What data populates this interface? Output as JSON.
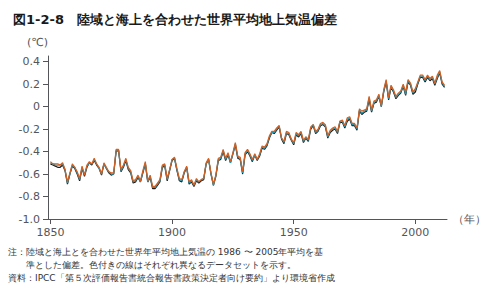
{
  "chart_data": {
    "type": "line",
    "title": "図1-2-8　陸域と海上を合わせた世界平均地上気温偏差",
    "ylabel": "(℃)",
    "xlabel": "（年）",
    "annotations": [
      "注：陸域と海上とを合わせた世界年平均地上気温の 1986 〜 2005年平均を基",
      "　　準とした偏差。色付きの線はそれぞれ異なるデータセットを示す。",
      "資料：IPCC「第５次評価報告書統合報告書政策決定者向け要約」より環境省作成"
    ],
    "grid": false,
    "xlim": [
      1849,
      2013
    ],
    "xticks": [
      1850,
      1900,
      1950,
      2000
    ],
    "ylim": [
      -1.0,
      0.45
    ],
    "yticks": [
      {
        "value": -1.0,
        "label": "-1.0"
      },
      -0.8,
      -0.6,
      -0.4,
      -0.2,
      0,
      0.2,
      0.4
    ],
    "x": [
      1850,
      1851,
      1852,
      1853,
      1854,
      1855,
      1856,
      1857,
      1858,
      1859,
      1860,
      1861,
      1862,
      1863,
      1864,
      1865,
      1866,
      1867,
      1868,
      1869,
      1870,
      1871,
      1872,
      1873,
      1874,
      1875,
      1876,
      1877,
      1878,
      1879,
      1880,
      1881,
      1882,
      1883,
      1884,
      1885,
      1886,
      1887,
      1888,
      1889,
      1890,
      1891,
      1892,
      1893,
      1894,
      1895,
      1896,
      1897,
      1898,
      1899,
      1900,
      1901,
      1902,
      1903,
      1904,
      1905,
      1906,
      1907,
      1908,
      1909,
      1910,
      1911,
      1912,
      1913,
      1914,
      1915,
      1916,
      1917,
      1918,
      1919,
      1920,
      1921,
      1922,
      1923,
      1924,
      1925,
      1926,
      1927,
      1928,
      1929,
      1930,
      1931,
      1932,
      1933,
      1934,
      1935,
      1936,
      1937,
      1938,
      1939,
      1940,
      1941,
      1942,
      1943,
      1944,
      1945,
      1946,
      1947,
      1948,
      1949,
      1950,
      1951,
      1952,
      1953,
      1954,
      1955,
      1956,
      1957,
      1958,
      1959,
      1960,
      1961,
      1962,
      1963,
      1964,
      1965,
      1966,
      1967,
      1968,
      1969,
      1970,
      1971,
      1972,
      1973,
      1974,
      1975,
      1976,
      1977,
      1978,
      1979,
      1980,
      1981,
      1982,
      1983,
      1984,
      1985,
      1986,
      1987,
      1988,
      1989,
      1990,
      1991,
      1992,
      1993,
      1994,
      1995,
      1996,
      1997,
      1998,
      1999,
      2000,
      2001,
      2002,
      2003,
      2004,
      2005,
      2006,
      2007,
      2008,
      2009,
      2010,
      2011,
      2012
    ],
    "series": [
      {
        "color": "#1a1a1a",
        "values": [
          -0.51,
          -0.52,
          -0.53,
          -0.54,
          -0.54,
          -0.52,
          -0.57,
          -0.69,
          -0.6,
          -0.53,
          -0.55,
          -0.6,
          -0.66,
          -0.55,
          -0.62,
          -0.54,
          -0.5,
          -0.52,
          -0.48,
          -0.52,
          -0.55,
          -0.61,
          -0.51,
          -0.55,
          -0.59,
          -0.61,
          -0.6,
          -0.4,
          -0.39,
          -0.58,
          -0.54,
          -0.48,
          -0.56,
          -0.59,
          -0.68,
          -0.67,
          -0.63,
          -0.67,
          -0.59,
          -0.51,
          -0.67,
          -0.63,
          -0.73,
          -0.73,
          -0.7,
          -0.67,
          -0.54,
          -0.53,
          -0.66,
          -0.57,
          -0.48,
          -0.46,
          -0.57,
          -0.66,
          -0.67,
          -0.59,
          -0.54,
          -0.69,
          -0.67,
          -0.71,
          -0.66,
          -0.68,
          -0.66,
          -0.65,
          -0.51,
          -0.47,
          -0.6,
          -0.7,
          -0.62,
          -0.48,
          -0.47,
          -0.4,
          -0.48,
          -0.43,
          -0.5,
          -0.42,
          -0.34,
          -0.46,
          -0.47,
          -0.6,
          -0.43,
          -0.4,
          -0.44,
          -0.49,
          -0.43,
          -0.48,
          -0.44,
          -0.37,
          -0.38,
          -0.35,
          -0.28,
          -0.23,
          -0.24,
          -0.21,
          -0.18,
          -0.29,
          -0.33,
          -0.24,
          -0.25,
          -0.3,
          -0.34,
          -0.25,
          -0.27,
          -0.24,
          -0.32,
          -0.28,
          -0.31,
          -0.2,
          -0.17,
          -0.24,
          -0.22,
          -0.17,
          -0.16,
          -0.18,
          -0.28,
          -0.23,
          -0.21,
          -0.2,
          -0.24,
          -0.14,
          -0.14,
          -0.19,
          -0.13,
          -0.11,
          -0.17,
          -0.17,
          -0.21,
          -0.04,
          -0.07,
          -0.05,
          -0.04,
          0.06,
          -0.05,
          0.03,
          0.04,
          0.09,
          -0.0,
          0.13,
          0.22,
          0.06,
          0.17,
          0.13,
          0.07,
          0.1,
          0.12,
          0.18,
          0.1,
          0.22,
          0.19,
          0.11,
          0.13,
          0.2,
          0.26,
          0.26,
          0.22,
          0.26,
          0.23,
          0.25,
          0.19,
          0.25,
          0.3,
          0.2,
          0.17
        ]
      },
      {
        "color": "#2196b0",
        "values": [
          -0.5,
          -0.51,
          -0.52,
          -0.52,
          -0.52,
          -0.51,
          -0.56,
          -0.68,
          -0.6,
          -0.52,
          -0.54,
          -0.59,
          -0.65,
          -0.54,
          -0.61,
          -0.53,
          -0.5,
          -0.51,
          -0.47,
          -0.51,
          -0.55,
          -0.6,
          -0.51,
          -0.55,
          -0.58,
          -0.6,
          -0.6,
          -0.39,
          -0.39,
          -0.57,
          -0.53,
          -0.47,
          -0.55,
          -0.58,
          -0.67,
          -0.66,
          -0.62,
          -0.67,
          -0.58,
          -0.5,
          -0.67,
          -0.62,
          -0.72,
          -0.72,
          -0.69,
          -0.66,
          -0.53,
          -0.52,
          -0.65,
          -0.56,
          -0.47,
          -0.46,
          -0.56,
          -0.65,
          -0.66,
          -0.58,
          -0.54,
          -0.68,
          -0.66,
          -0.7,
          -0.65,
          -0.67,
          -0.65,
          -0.64,
          -0.51,
          -0.47,
          -0.6,
          -0.7,
          -0.61,
          -0.47,
          -0.46,
          -0.39,
          -0.47,
          -0.42,
          -0.5,
          -0.42,
          -0.33,
          -0.45,
          -0.46,
          -0.59,
          -0.42,
          -0.39,
          -0.43,
          -0.48,
          -0.43,
          -0.47,
          -0.43,
          -0.36,
          -0.37,
          -0.34,
          -0.27,
          -0.23,
          -0.23,
          -0.2,
          -0.17,
          -0.28,
          -0.32,
          -0.23,
          -0.24,
          -0.29,
          -0.33,
          -0.24,
          -0.26,
          -0.23,
          -0.31,
          -0.27,
          -0.3,
          -0.19,
          -0.16,
          -0.23,
          -0.21,
          -0.16,
          -0.15,
          -0.17,
          -0.27,
          -0.22,
          -0.2,
          -0.19,
          -0.23,
          -0.13,
          -0.13,
          -0.18,
          -0.11,
          -0.1,
          -0.16,
          -0.16,
          -0.2,
          -0.03,
          -0.06,
          -0.04,
          -0.03,
          0.08,
          -0.04,
          0.04,
          0.05,
          0.1,
          0.0,
          0.14,
          0.23,
          0.07,
          0.18,
          0.14,
          0.08,
          0.11,
          0.13,
          0.19,
          0.11,
          0.23,
          0.2,
          0.12,
          0.15,
          0.21,
          0.27,
          0.27,
          0.23,
          0.27,
          0.24,
          0.26,
          0.2,
          0.26,
          0.31,
          0.21,
          0.18
        ]
      },
      {
        "color": "#d45f20",
        "values": [
          -0.49,
          -0.51,
          -0.51,
          -0.51,
          -0.52,
          -0.5,
          -0.56,
          -0.67,
          -0.59,
          -0.51,
          -0.54,
          -0.58,
          -0.64,
          -0.53,
          -0.61,
          -0.52,
          -0.49,
          -0.51,
          -0.46,
          -0.51,
          -0.54,
          -0.6,
          -0.5,
          -0.54,
          -0.58,
          -0.59,
          -0.59,
          -0.38,
          -0.38,
          -0.56,
          -0.52,
          -0.46,
          -0.54,
          -0.57,
          -0.66,
          -0.65,
          -0.61,
          -0.66,
          -0.57,
          -0.49,
          -0.66,
          -0.61,
          -0.71,
          -0.71,
          -0.68,
          -0.65,
          -0.52,
          -0.51,
          -0.64,
          -0.56,
          -0.47,
          -0.45,
          -0.55,
          -0.64,
          -0.65,
          -0.58,
          -0.53,
          -0.67,
          -0.65,
          -0.7,
          -0.64,
          -0.67,
          -0.65,
          -0.64,
          -0.5,
          -0.46,
          -0.59,
          -0.69,
          -0.61,
          -0.46,
          -0.45,
          -0.38,
          -0.46,
          -0.41,
          -0.49,
          -0.41,
          -0.32,
          -0.44,
          -0.45,
          -0.58,
          -0.41,
          -0.38,
          -0.42,
          -0.47,
          -0.42,
          -0.47,
          -0.42,
          -0.35,
          -0.36,
          -0.33,
          -0.26,
          -0.22,
          -0.22,
          -0.19,
          -0.17,
          -0.28,
          -0.31,
          -0.22,
          -0.23,
          -0.29,
          -0.32,
          -0.23,
          -0.25,
          -0.22,
          -0.3,
          -0.27,
          -0.29,
          -0.18,
          -0.16,
          -0.22,
          -0.2,
          -0.15,
          -0.14,
          -0.16,
          -0.26,
          -0.21,
          -0.19,
          -0.18,
          -0.22,
          -0.13,
          -0.12,
          -0.17,
          -0.1,
          -0.09,
          -0.15,
          -0.15,
          -0.19,
          -0.02,
          -0.04,
          -0.03,
          -0.02,
          0.09,
          -0.03,
          0.05,
          0.06,
          0.11,
          0.01,
          0.15,
          0.24,
          0.08,
          0.19,
          0.15,
          0.09,
          0.12,
          0.14,
          0.2,
          0.13,
          0.24,
          0.21,
          0.13,
          0.16,
          0.22,
          0.28,
          0.28,
          0.24,
          0.28,
          0.25,
          0.27,
          0.21,
          0.28,
          0.32,
          0.22,
          0.19
        ]
      }
    ]
  }
}
